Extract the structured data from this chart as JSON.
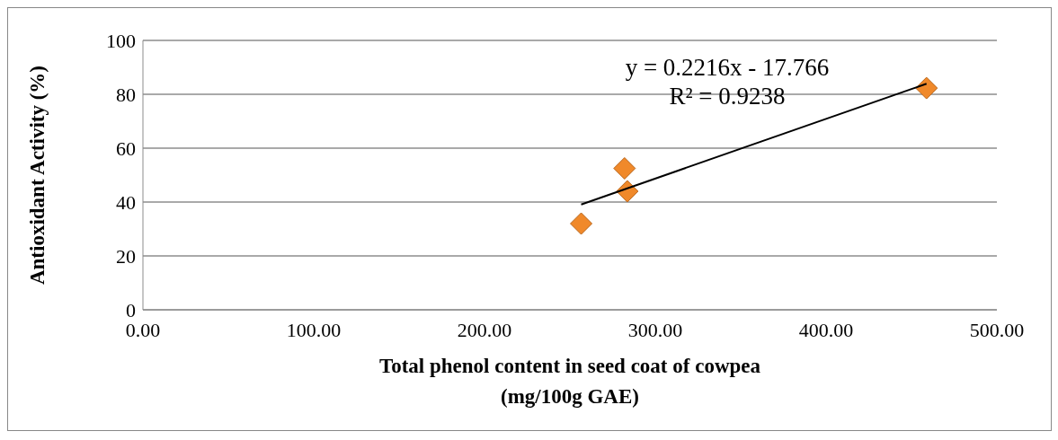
{
  "chart_data": {
    "type": "scatter",
    "xlabel": "Total phenol content in seed coat of cowpea\n(mg/100g GAE)",
    "ylabel": "Antioxidant Activity (%)",
    "xlim": [
      0,
      500
    ],
    "xticks": [
      {
        "value": 0,
        "label": "0.00"
      },
      {
        "value": 100,
        "label": "100.00"
      },
      {
        "value": 200,
        "label": "200.00"
      },
      {
        "value": 300,
        "label": "300.00"
      },
      {
        "value": 400,
        "label": "400.00"
      },
      {
        "value": 500,
        "label": "500.00"
      }
    ],
    "ylim": [
      0,
      100
    ],
    "yticks": [
      0,
      20,
      40,
      60,
      80,
      100
    ],
    "grid": "y",
    "marker": "diamond",
    "series": [
      {
        "color": "#f0892a",
        "x": [
          256.6,
          282,
          283.6,
          458.8
        ],
        "values": [
          32,
          52.5,
          44,
          82.3
        ]
      },
      {
        "type": "line",
        "color": "#000000",
        "marker": "none",
        "x": [
          256.6,
          458.8
        ],
        "values": [
          39.1,
          83.9
        ]
      }
    ],
    "annotations": [
      "y = 0.2216x - 17.766",
      "R² = 0.9238"
    ]
  }
}
